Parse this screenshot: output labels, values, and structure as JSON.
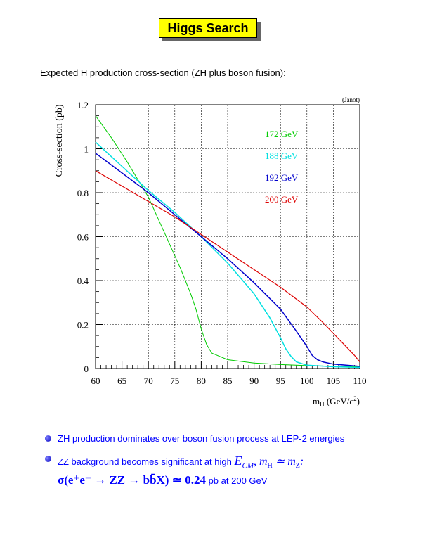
{
  "header": {
    "title": "Higgs Search"
  },
  "subtitle": "Expected H production cross-section (ZH plus boson fusion):",
  "chart_data": {
    "type": "line",
    "title": "",
    "credit": "(Janot)",
    "xlabel": "m_H (GeV/c^2)",
    "xlabel_parts": {
      "m": "m",
      "sub": "H",
      "unit": " (GeV/c",
      "sup": "2",
      "close": ")"
    },
    "ylabel": "Cross-section (pb)",
    "xlim": [
      60,
      110
    ],
    "ylim": [
      0,
      1.2
    ],
    "xticks": [
      60,
      65,
      70,
      75,
      80,
      85,
      90,
      95,
      100,
      105,
      110
    ],
    "yticks": [
      0,
      0.2,
      0.4,
      0.6,
      0.8,
      1,
      1.2
    ],
    "ytick_labels": [
      "0",
      "0.2",
      "0.4",
      "0.6",
      "0.8",
      "1",
      "1.2"
    ],
    "grid": true,
    "series": [
      {
        "name": "172 GeV",
        "color": "#00cc00",
        "x": [
          60,
          63,
          66,
          70,
          73,
          76,
          78,
          79,
          80,
          81,
          82,
          85,
          90,
          95,
          100,
          105,
          110
        ],
        "y": [
          1.15,
          1.05,
          0.94,
          0.78,
          0.62,
          0.46,
          0.34,
          0.27,
          0.18,
          0.11,
          0.07,
          0.04,
          0.025,
          0.018,
          0.013,
          0.01,
          0.008
        ]
      },
      {
        "name": "188 GeV",
        "color": "#00e0e0",
        "x": [
          60,
          65,
          70,
          75,
          80,
          85,
          90,
          93,
          95,
          96,
          97,
          98,
          100,
          105,
          110
        ],
        "y": [
          1.03,
          0.92,
          0.81,
          0.71,
          0.6,
          0.48,
          0.34,
          0.23,
          0.14,
          0.09,
          0.055,
          0.03,
          0.015,
          0.008,
          0.005
        ]
      },
      {
        "name": "192 GeV",
        "color": "#0000cc",
        "x": [
          60,
          65,
          70,
          75,
          80,
          85,
          90,
          95,
          98,
          100,
          101,
          102,
          103,
          105,
          110
        ],
        "y": [
          0.98,
          0.89,
          0.8,
          0.7,
          0.6,
          0.5,
          0.39,
          0.27,
          0.17,
          0.1,
          0.06,
          0.04,
          0.03,
          0.02,
          0.01
        ]
      },
      {
        "name": "200 GeV",
        "color": "#dd0000",
        "x": [
          60,
          65,
          70,
          75,
          80,
          85,
          90,
          95,
          100,
          103,
          105,
          107,
          109,
          110
        ],
        "y": [
          0.9,
          0.83,
          0.76,
          0.69,
          0.61,
          0.53,
          0.45,
          0.37,
          0.28,
          0.21,
          0.16,
          0.11,
          0.06,
          0.03
        ]
      }
    ]
  },
  "bullets": {
    "item1": "ZH production dominates over boson fusion process at LEP-2 energies",
    "item2_prefix": "ZZ background becomes significant at high",
    "item2_ecm": "E",
    "item2_ecm_sub": "CM",
    "item2_relation": ", m",
    "item2_mh_sub": "H",
    "item2_sim": " ≃ m",
    "item2_mz_sub": "Z",
    "item2_colon": ":",
    "formula": "σ(e⁺e⁻ → ZZ → bb̄X) ≃ 0.24",
    "formula_suffix": " pb at 200 GeV"
  }
}
